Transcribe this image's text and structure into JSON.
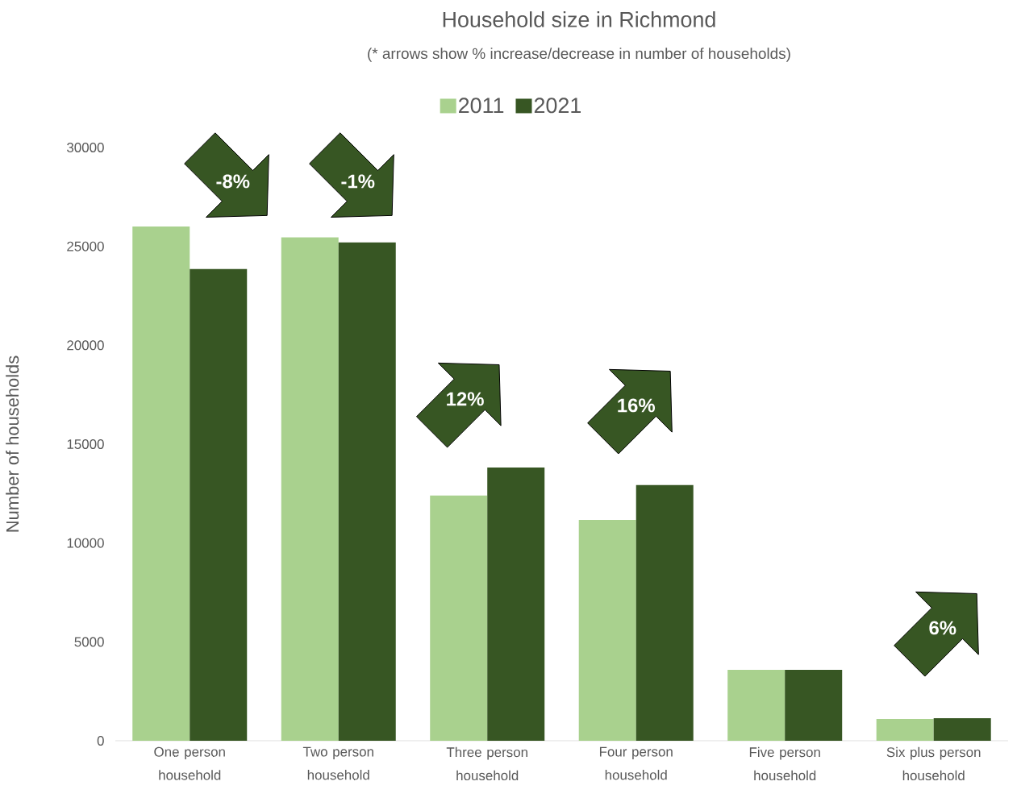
{
  "chart_data": {
    "type": "bar",
    "title": "Household size in Richmond",
    "subtitle": "(* arrows show % increase/decrease in number of households)",
    "ylabel": "Number of households",
    "categories": [
      "One person household",
      "Two person household",
      "Three person household",
      "Four person household",
      "Five person household",
      "Six plus person household"
    ],
    "series": [
      {
        "name": "2011",
        "color": "#a9d18e",
        "values": [
          26000,
          25450,
          12400,
          11170,
          3590,
          1100
        ]
      },
      {
        "name": "2021",
        "color": "#375623",
        "values": [
          23850,
          25200,
          13820,
          12930,
          3590,
          1140
        ]
      }
    ],
    "ylim": [
      0,
      30000
    ],
    "yticks": [
      0,
      5000,
      10000,
      15000,
      20000,
      25000,
      30000
    ],
    "grid": false,
    "legend": "top",
    "annotations": [
      "-8%",
      "-1%",
      "12%",
      "16%",
      "6%"
    ]
  }
}
